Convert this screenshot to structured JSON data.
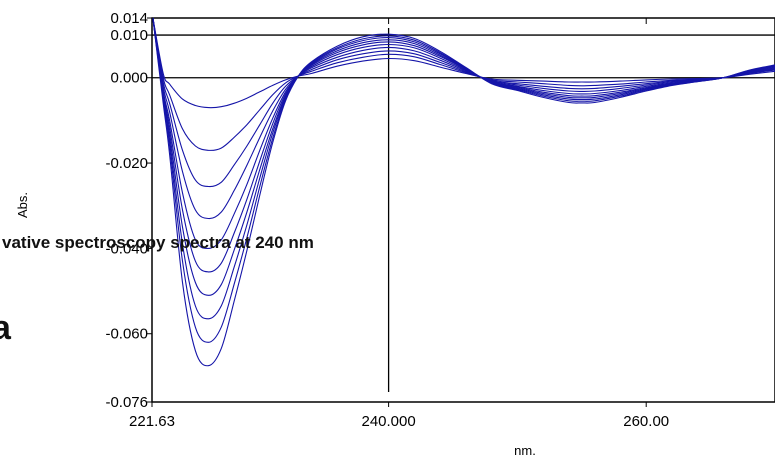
{
  "caption": "vative spectroscopy spectra at 240 nm",
  "panel_letter": "a",
  "chart_data": {
    "type": "line",
    "title": "",
    "xlabel": "nm.",
    "ylabel": "Abs.",
    "xlim": [
      221.63,
      270
    ],
    "ylim": [
      -0.076,
      0.014
    ],
    "x_tick_labels": [
      {
        "value": 221.63,
        "label": "221.63"
      },
      {
        "value": 240,
        "label": "240.000"
      },
      {
        "value": 260,
        "label": "260.00"
      }
    ],
    "y_tick_labels": [
      {
        "value": 0.014,
        "label": "0.014"
      },
      {
        "value": 0.01,
        "label": "0.010"
      },
      {
        "value": 0.0,
        "label": "0.000"
      },
      {
        "value": -0.02,
        "label": "-0.020"
      },
      {
        "value": -0.04,
        "label": "-0.040"
      },
      {
        "value": -0.06,
        "label": "-0.060"
      },
      {
        "value": -0.076,
        "label": "-0.076"
      }
    ],
    "reference_lines": {
      "horizontal": [
        0.01,
        0.0
      ],
      "vertical": [
        240
      ]
    },
    "line_color": "#1515a8",
    "x": [
      221.7,
      222.5,
      223,
      224,
      225,
      226,
      227,
      228,
      229,
      230,
      231,
      232,
      233,
      234,
      236,
      238,
      240,
      242,
      244,
      246,
      248,
      250,
      252,
      254,
      255,
      256,
      258,
      260,
      262,
      264,
      266,
      268,
      270
    ],
    "series": [
      {
        "values": [
          0.014,
          0.001,
          -0.0015,
          -0.005,
          -0.0065,
          -0.007,
          -0.0068,
          -0.006,
          -0.0048,
          -0.0033,
          -0.0018,
          -0.0005,
          0.0004,
          0.001,
          0.0027,
          0.0039,
          0.0045,
          0.004,
          0.0025,
          0.001,
          -0.0003,
          -0.0006,
          -0.0008,
          -0.001,
          -0.001,
          -0.001,
          -0.0008,
          -0.0005,
          -0.0003,
          -0.0002,
          0.0,
          0.0008,
          0.0015
        ]
      },
      {
        "values": [
          0.014,
          0.0,
          -0.004,
          -0.012,
          -0.016,
          -0.017,
          -0.0165,
          -0.014,
          -0.011,
          -0.0075,
          -0.004,
          -0.0012,
          0.0004,
          0.0015,
          0.0035,
          0.0048,
          0.0055,
          0.0049,
          0.0031,
          0.0012,
          -0.0005,
          -0.001,
          -0.0014,
          -0.0018,
          -0.0019,
          -0.0018,
          -0.0015,
          -0.001,
          -0.0006,
          -0.0003,
          0.0,
          0.001,
          0.0018
        ]
      },
      {
        "values": [
          0.014,
          -0.001,
          -0.006,
          -0.017,
          -0.024,
          -0.0255,
          -0.0245,
          -0.0205,
          -0.016,
          -0.011,
          -0.006,
          -0.002,
          0.0004,
          0.0019,
          0.0042,
          0.0056,
          0.0063,
          0.0056,
          0.0036,
          0.0014,
          -0.0007,
          -0.0014,
          -0.002,
          -0.0025,
          -0.0026,
          -0.0025,
          -0.002,
          -0.0014,
          -0.0008,
          -0.0004,
          0.0,
          0.0011,
          0.002
        ]
      },
      {
        "values": [
          0.014,
          -0.002,
          -0.008,
          -0.022,
          -0.031,
          -0.033,
          -0.0315,
          -0.0265,
          -0.0205,
          -0.014,
          -0.0078,
          -0.0027,
          0.0004,
          0.0023,
          0.0048,
          0.0064,
          0.0071,
          0.0063,
          0.0041,
          0.0016,
          -0.0008,
          -0.0017,
          -0.0025,
          -0.0031,
          -0.0032,
          -0.0031,
          -0.0025,
          -0.0017,
          -0.001,
          -0.0005,
          0.0,
          0.0012,
          0.0022
        ]
      },
      {
        "values": [
          0.014,
          -0.003,
          -0.01,
          -0.027,
          -0.038,
          -0.04,
          -0.038,
          -0.032,
          -0.025,
          -0.017,
          -0.0095,
          -0.0033,
          0.0004,
          0.0026,
          0.0054,
          0.0071,
          0.0078,
          0.007,
          0.0046,
          0.0018,
          -0.0009,
          -0.002,
          -0.003,
          -0.0037,
          -0.0038,
          -0.0037,
          -0.003,
          -0.002,
          -0.0012,
          -0.0006,
          0.0,
          0.0013,
          0.0024
        ]
      },
      {
        "values": [
          0.014,
          -0.0035,
          -0.0115,
          -0.031,
          -0.043,
          -0.0455,
          -0.0435,
          -0.0365,
          -0.0285,
          -0.0195,
          -0.0108,
          -0.0038,
          0.0004,
          0.0029,
          0.0059,
          0.0077,
          0.0084,
          0.0075,
          0.005,
          0.002,
          -0.001,
          -0.0022,
          -0.0034,
          -0.0042,
          -0.0043,
          -0.0042,
          -0.0034,
          -0.0023,
          -0.0014,
          -0.0007,
          0.0,
          0.0014,
          0.0026
        ]
      },
      {
        "values": [
          0.014,
          -0.004,
          -0.013,
          -0.035,
          -0.048,
          -0.051,
          -0.0485,
          -0.0405,
          -0.0315,
          -0.0215,
          -0.012,
          -0.0042,
          0.0004,
          0.0031,
          0.0063,
          0.0082,
          0.0089,
          0.008,
          0.0053,
          0.0021,
          -0.0011,
          -0.0024,
          -0.0037,
          -0.0046,
          -0.0047,
          -0.0046,
          -0.0037,
          -0.0025,
          -0.0015,
          -0.0008,
          0.0,
          0.0015,
          0.0027
        ]
      },
      {
        "values": [
          0.014,
          -0.0045,
          -0.0145,
          -0.039,
          -0.0535,
          -0.0565,
          -0.0535,
          -0.0445,
          -0.0345,
          -0.0235,
          -0.013,
          -0.0046,
          0.0004,
          0.0033,
          0.0067,
          0.0087,
          0.0094,
          0.0084,
          0.0056,
          0.0022,
          -0.0012,
          -0.0026,
          -0.004,
          -0.005,
          -0.0051,
          -0.005,
          -0.004,
          -0.0027,
          -0.0016,
          -0.0008,
          0.0,
          0.0016,
          0.0028
        ]
      },
      {
        "values": [
          0.014,
          -0.005,
          -0.016,
          -0.043,
          -0.0585,
          -0.062,
          -0.0585,
          -0.0485,
          -0.0375,
          -0.0255,
          -0.0142,
          -0.005,
          0.0004,
          0.0035,
          0.007,
          0.0091,
          0.0098,
          0.0088,
          0.0059,
          0.0023,
          -0.0013,
          -0.0028,
          -0.0043,
          -0.0054,
          -0.0055,
          -0.0054,
          -0.0043,
          -0.0029,
          -0.0017,
          -0.0009,
          0.0,
          0.0017,
          0.0029
        ]
      },
      {
        "values": [
          0.014,
          -0.006,
          -0.018,
          -0.048,
          -0.064,
          -0.0675,
          -0.0635,
          -0.0525,
          -0.0405,
          -0.0275,
          -0.0152,
          -0.0054,
          0.0004,
          0.0037,
          0.0074,
          0.0096,
          0.0102,
          0.0092,
          0.0062,
          0.0024,
          -0.0014,
          -0.003,
          -0.0046,
          -0.0058,
          -0.0059,
          -0.0058,
          -0.0046,
          -0.0031,
          -0.0018,
          -0.0009,
          0.0,
          0.0018,
          0.003
        ]
      }
    ]
  }
}
